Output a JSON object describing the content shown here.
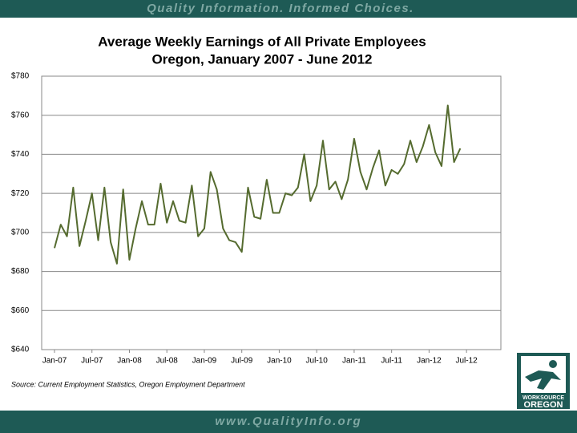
{
  "banner": "Quality Information. Informed Choices.",
  "footer": "www.QualityInfo.org",
  "logo": [
    "WORKSOURCE",
    "OREGON"
  ],
  "chart_data": {
    "type": "line",
    "title": "Average Weekly Earnings of All Private Employees",
    "subtitle": "Oregon, January 2007 - June 2012",
    "source": "Source: Current Employment Statistics, Oregon Employment Department",
    "categories": [
      "Jan-07",
      null,
      null,
      null,
      null,
      null,
      "Jul-07",
      null,
      null,
      null,
      null,
      null,
      "Jan-08",
      null,
      null,
      null,
      null,
      null,
      "Jul-08",
      null,
      null,
      null,
      null,
      null,
      "Jan-09",
      null,
      null,
      null,
      null,
      null,
      "Jul-09",
      null,
      null,
      null,
      null,
      null,
      "Jan-10",
      null,
      null,
      null,
      null,
      null,
      "Jul-10",
      null,
      null,
      null,
      null,
      null,
      "Jan-11",
      null,
      null,
      null,
      null,
      null,
      "Jul-11",
      null,
      null,
      null,
      null,
      null,
      "Jan-12",
      null,
      null,
      null,
      null,
      null,
      "Jul-12"
    ],
    "series": [
      {
        "name": "Average Weekly Earnings",
        "color": "#556b2f",
        "values": [
          692,
          704,
          698,
          723,
          693,
          706,
          720,
          696,
          723,
          695,
          684,
          722,
          686,
          702,
          716,
          704,
          704,
          725,
          705,
          716,
          706,
          705,
          724,
          698,
          702,
          731,
          722,
          702,
          696,
          695,
          690,
          723,
          708,
          707,
          727,
          710,
          710,
          720,
          719,
          723,
          740,
          716,
          724,
          747,
          722,
          726,
          717,
          727,
          748,
          731,
          722,
          733,
          742,
          724,
          732,
          730,
          735,
          747,
          736,
          744,
          755,
          741,
          734,
          765,
          736,
          743,
          null
        ]
      }
    ],
    "ylim": [
      640,
      780
    ],
    "yticks": [
      {
        "value": 640,
        "label": "$640"
      },
      {
        "value": 660,
        "label": "$660"
      },
      {
        "value": 680,
        "label": "$680"
      },
      {
        "value": 700,
        "label": "$700"
      },
      {
        "value": 720,
        "label": "$720"
      },
      {
        "value": 740,
        "label": "$740"
      },
      {
        "value": 760,
        "label": "$760"
      },
      {
        "value": 780,
        "label": "$780"
      }
    ],
    "grid": true
  }
}
